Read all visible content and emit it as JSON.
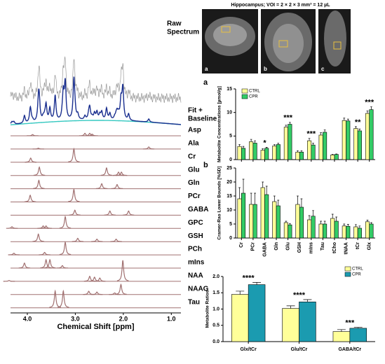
{
  "mri": {
    "title": "Hippocampus; VOI = 2 × 2 × 3 mm³ = 12 µL",
    "panels": [
      "a",
      "b",
      "c"
    ]
  },
  "chart_data": [
    {
      "type": "spectrum",
      "raw_label": [
        "Raw",
        "Spectrum"
      ],
      "fit_label": [
        "Fit +",
        "Baseline"
      ],
      "xlabel": "Chemical Shift [ppm]",
      "xlim": [
        4.35,
        0.8
      ],
      "xticks": [
        {
          "value": 4,
          "label": "4.0"
        },
        {
          "value": 3,
          "label": "3.0"
        },
        {
          "value": 2,
          "label": "2.0"
        },
        {
          "value": 1,
          "label": "1.0"
        }
      ],
      "color": "#a07070",
      "series": [
        {
          "name": "Asp",
          "peaks": [
            [
              3.89,
              0.15
            ],
            [
              2.8,
              0.3
            ],
            [
              2.7,
              0.3
            ],
            [
              2.65,
              0.2
            ]
          ]
        },
        {
          "name": "Ala",
          "peaks": [
            [
              3.77,
              0.1
            ],
            [
              1.47,
              0.25
            ]
          ]
        },
        {
          "name": "Cr",
          "peaks": [
            [
              3.93,
              0.5
            ],
            [
              3.03,
              1.6
            ]
          ]
        },
        {
          "name": "Glu",
          "peaks": [
            [
              3.75,
              1.0
            ],
            [
              2.35,
              0.9
            ],
            [
              2.1,
              0.4
            ],
            [
              2.04,
              0.4
            ]
          ]
        },
        {
          "name": "Gln",
          "peaks": [
            [
              3.76,
              1.0
            ],
            [
              2.45,
              0.6
            ],
            [
              2.13,
              0.5
            ]
          ]
        },
        {
          "name": "PCr",
          "peaks": [
            [
              3.94,
              0.8
            ],
            [
              3.03,
              1.5
            ]
          ]
        },
        {
          "name": "GABA",
          "peaks": [
            [
              3.01,
              0.6
            ],
            [
              2.28,
              0.5
            ],
            [
              1.89,
              0.5
            ]
          ]
        },
        {
          "name": "GPC",
          "peaks": [
            [
              4.32,
              0.2
            ],
            [
              3.67,
              0.3
            ],
            [
              3.61,
              0.3
            ],
            [
              3.21,
              1.4
            ]
          ]
        },
        {
          "name": "GSH",
          "peaks": [
            [
              3.77,
              0.9
            ],
            [
              2.95,
              0.4
            ],
            [
              2.55,
              0.3
            ],
            [
              2.15,
              0.3
            ]
          ]
        },
        {
          "name": "PCh",
          "peaks": [
            [
              4.28,
              0.2
            ],
            [
              3.64,
              0.3
            ],
            [
              3.21,
              1.5
            ]
          ]
        },
        {
          "name": "mIns",
          "peaks": [
            [
              4.06,
              0.6
            ],
            [
              3.61,
              1.0
            ],
            [
              3.53,
              1.0
            ],
            [
              3.27,
              0.3
            ]
          ]
        },
        {
          "name": "NAA",
          "peaks": [
            [
              4.38,
              0.1
            ],
            [
              2.7,
              0.6
            ],
            [
              2.6,
              0.5
            ],
            [
              2.49,
              0.4
            ],
            [
              2.01,
              2.5
            ]
          ]
        },
        {
          "name": "NAAG",
          "peaks": [
            [
              2.72,
              0.4
            ],
            [
              2.55,
              0.3
            ],
            [
              2.18,
              0.2
            ],
            [
              2.05,
              1.2
            ]
          ]
        },
        {
          "name": "Tau",
          "peaks": [
            [
              3.42,
              2.0
            ],
            [
              3.25,
              2.0
            ]
          ]
        }
      ]
    },
    {
      "type": "bar",
      "panel_label": "a",
      "ylabel": "Metabolite Concentrations [µmol/g]",
      "categories": [
        null,
        null,
        null,
        null,
        null,
        null,
        null,
        null,
        null,
        null,
        null,
        null
      ],
      "annotations": [
        null,
        null,
        "*",
        null,
        "***",
        null,
        "***",
        null,
        null,
        null,
        "**",
        "***"
      ],
      "legend": "top-left",
      "ylim": [
        0,
        15
      ],
      "yticks": [
        0,
        5,
        10,
        15
      ],
      "series": [
        {
          "name": "CTRL",
          "color": "#ffff99",
          "values": [
            2.8,
            3.8,
            2.0,
            2.9,
            6.9,
            1.6,
            4.0,
            5.2,
            1.0,
            8.3,
            6.6,
            9.8
          ],
          "errors": [
            0.4,
            0.5,
            0.3,
            0.3,
            0.4,
            0.3,
            0.5,
            0.5,
            0.1,
            0.5,
            0.4,
            0.5
          ]
        },
        {
          "name": "CPR",
          "color": "#33cc66",
          "values": [
            2.4,
            3.5,
            2.4,
            3.2,
            7.5,
            1.6,
            3.1,
            5.8,
            1.1,
            8.2,
            6.1,
            10.6
          ],
          "errors": [
            0.4,
            0.5,
            0.2,
            0.3,
            0.4,
            0.3,
            0.4,
            0.5,
            0.1,
            0.4,
            0.4,
            0.6
          ]
        }
      ]
    },
    {
      "type": "bar",
      "panel_label": "b",
      "ylabel": "Cramer-Rao Lower Bounds [%SD]",
      "categories": [
        "Cr",
        "PCr",
        "GABA",
        "Gln",
        "Glu",
        "GSH",
        "mIns",
        "Tau",
        "tCho",
        "tNAA",
        "tCr",
        "Glx"
      ],
      "ylim": [
        0,
        25
      ],
      "yticks": [
        0,
        5,
        10,
        15,
        20,
        25
      ],
      "series": [
        {
          "name": "CTRL",
          "color": "#ffff99",
          "values": [
            14,
            12,
            18,
            13,
            5.5,
            12,
            6.5,
            5,
            7,
            4.3,
            4,
            5.8
          ],
          "errors": [
            4,
            4,
            2,
            2,
            0.5,
            3,
            1.5,
            1,
            1.5,
            0.7,
            0.8,
            0.6
          ]
        },
        {
          "name": "CPR",
          "color": "#33cc66",
          "values": [
            16,
            12,
            15.5,
            11.5,
            4.7,
            11,
            7.8,
            5,
            6,
            4.2,
            3.5,
            5
          ],
          "errors": [
            5,
            4,
            3,
            2,
            0.5,
            3,
            2,
            1,
            1.5,
            0.7,
            0.8,
            0.5
          ]
        }
      ]
    },
    {
      "type": "bar",
      "ylabel": "Metabolite Ratios",
      "categories": [
        "Glx/tCr",
        "Glu/tCr",
        "GABA/tCr"
      ],
      "annotations": [
        "****",
        "****",
        "***"
      ],
      "legend": "top-right",
      "ylim": [
        0,
        2
      ],
      "yticks": [
        {
          "value": 0,
          "label": "0.0"
        },
        {
          "value": 0.5,
          "label": "0.5"
        },
        {
          "value": 1,
          "label": "1.0"
        },
        {
          "value": 1.5,
          "label": "1.5"
        },
        {
          "value": 2,
          "label": "2.0"
        }
      ],
      "series": [
        {
          "name": "CTRL",
          "color": "#ffff99",
          "values": [
            1.45,
            1.02,
            0.31
          ],
          "errors": [
            0.1,
            0.08,
            0.06
          ]
        },
        {
          "name": "CPR",
          "color": "#1b9bb0",
          "values": [
            1.75,
            1.22,
            0.41
          ],
          "errors": [
            0.07,
            0.07,
            0.03
          ]
        }
      ]
    }
  ]
}
